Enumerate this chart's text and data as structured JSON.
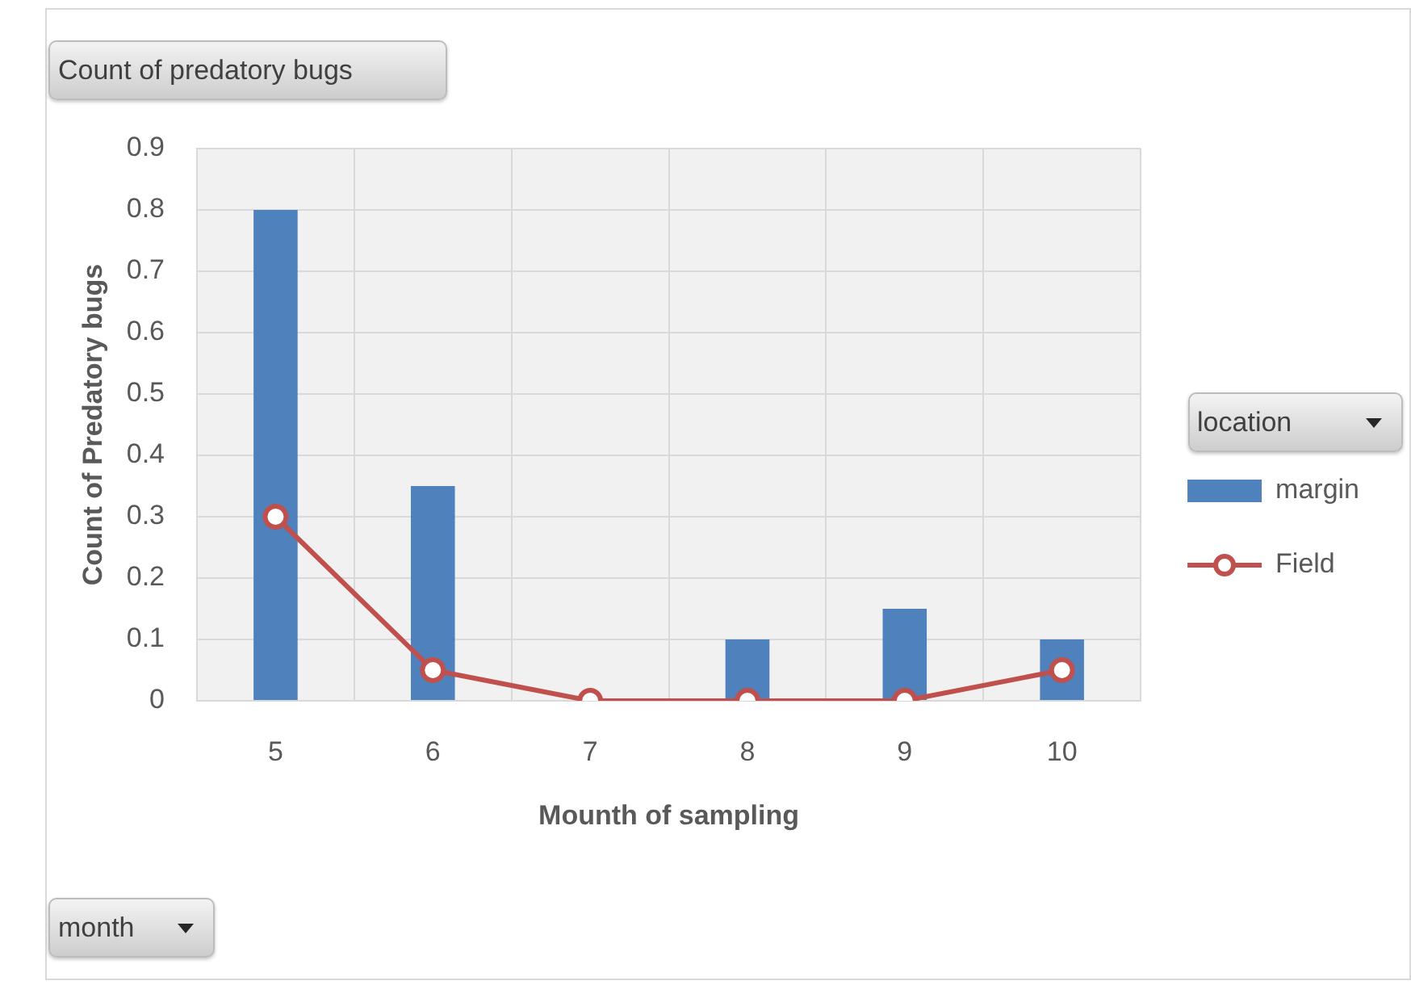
{
  "chart_data": {
    "type": "bar",
    "title": "Count of predatory bugs",
    "xlabel": "Mounth of sampling",
    "ylabel": "Count of Predatory bugs",
    "legend_title": "location",
    "annotations": [
      "month"
    ],
    "categories": [
      "5",
      "6",
      "7",
      "8",
      "9",
      "10"
    ],
    "series": [
      {
        "name": "margin",
        "color": "#4f81bd",
        "values": [
          0.8,
          0.35,
          null,
          0.1,
          0.15,
          0.1
        ]
      },
      {
        "name": "Field",
        "type": "line",
        "color": "#c0504d",
        "marker": "circle",
        "values": [
          0.3,
          0.05,
          0,
          0,
          0,
          0.05
        ]
      }
    ],
    "ylim": [
      0,
      0.9
    ],
    "yticks": [
      0,
      0.1,
      0.2,
      0.3,
      0.4,
      0.5,
      0.6,
      0.7,
      0.8,
      0.9
    ],
    "grid": true,
    "legend": "right"
  }
}
